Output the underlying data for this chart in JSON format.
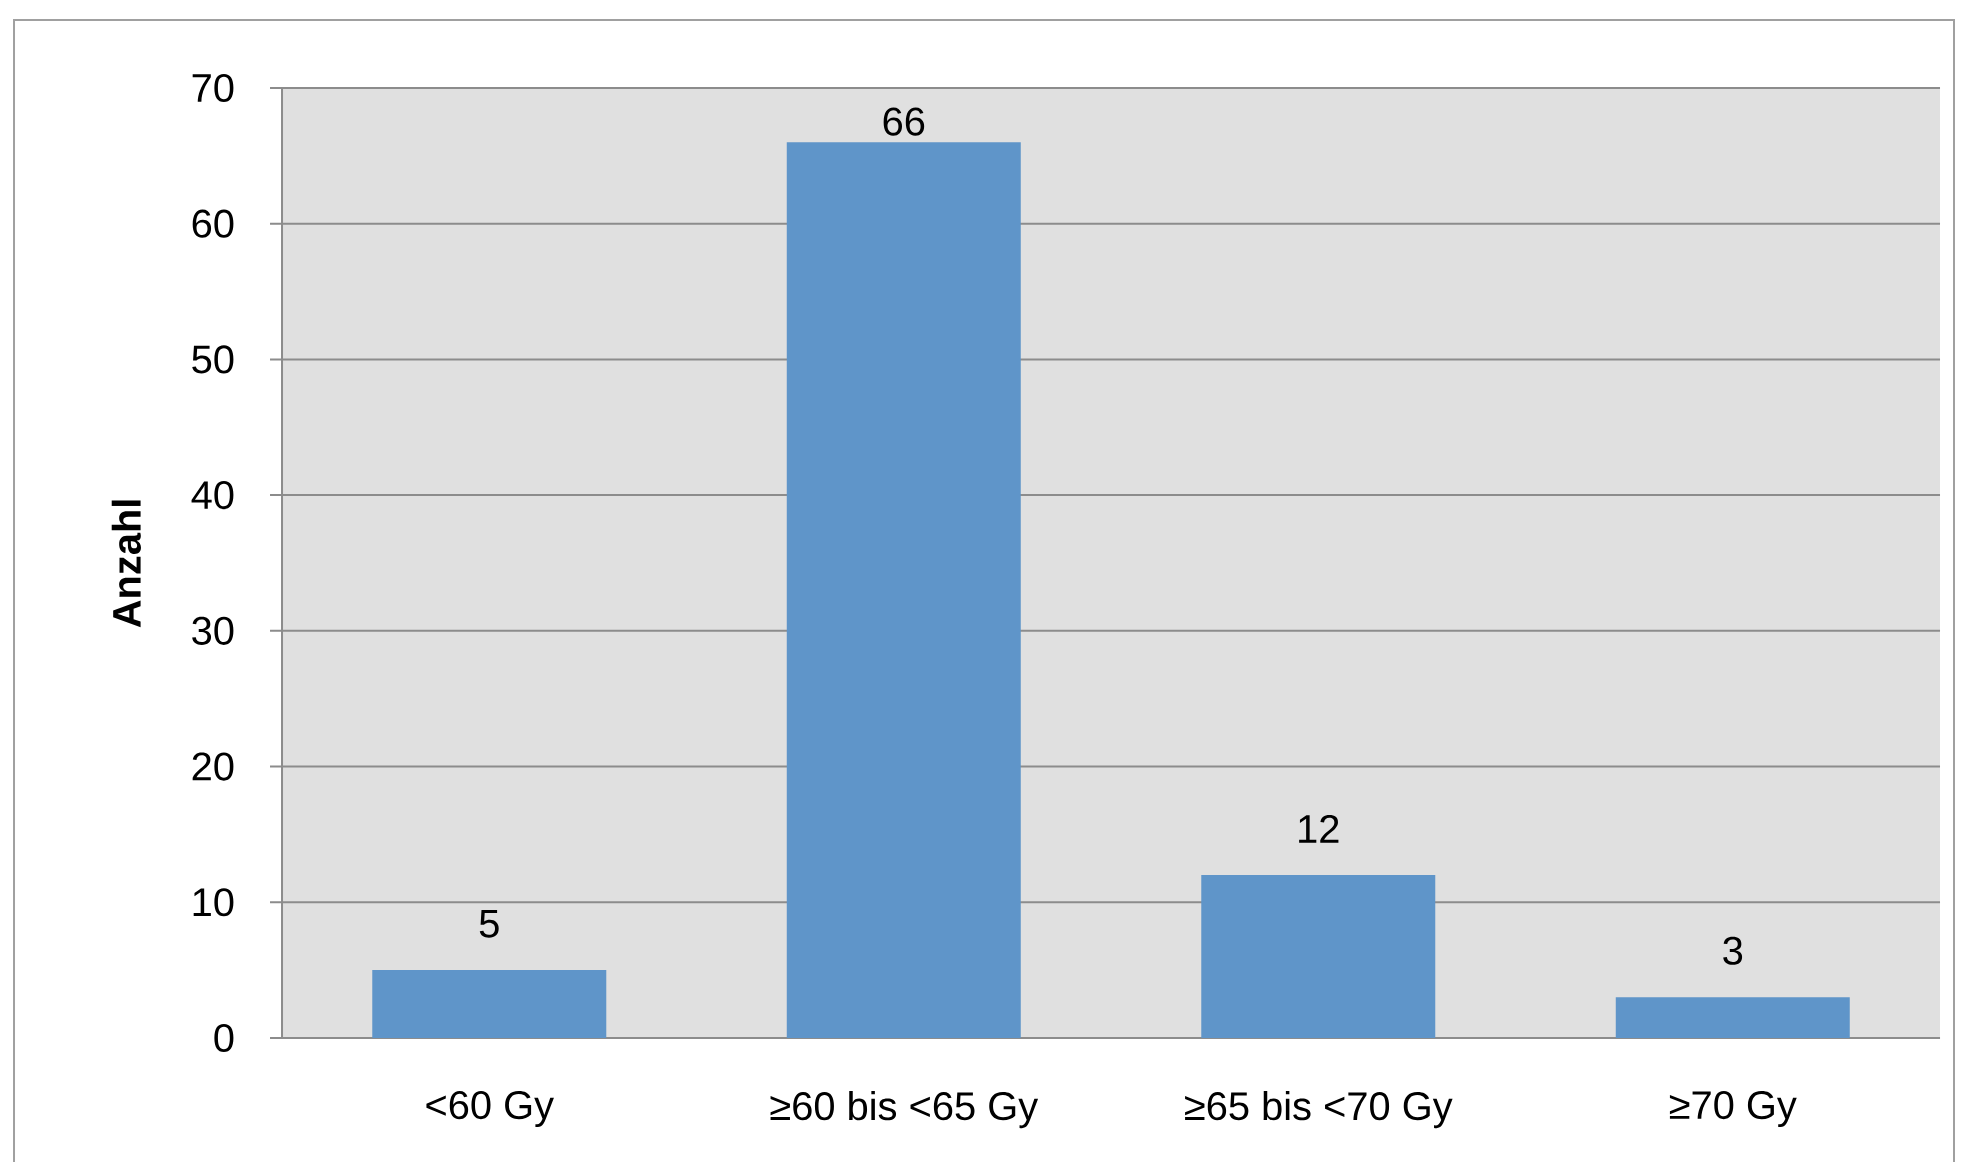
{
  "chart_data": {
    "type": "bar",
    "ylabel": "Anzahl",
    "categories": [
      "<60 Gy",
      "≥60 bis <65 Gy",
      "≥65 bis <70 Gy",
      "≥70 Gy"
    ],
    "values": [
      5,
      66,
      12,
      3
    ],
    "color": "#5f95c9",
    "ylim": [
      0,
      70
    ],
    "yticks": [
      0,
      10,
      20,
      30,
      40,
      50,
      60,
      70
    ],
    "grid": "y",
    "data_labels": true
  }
}
